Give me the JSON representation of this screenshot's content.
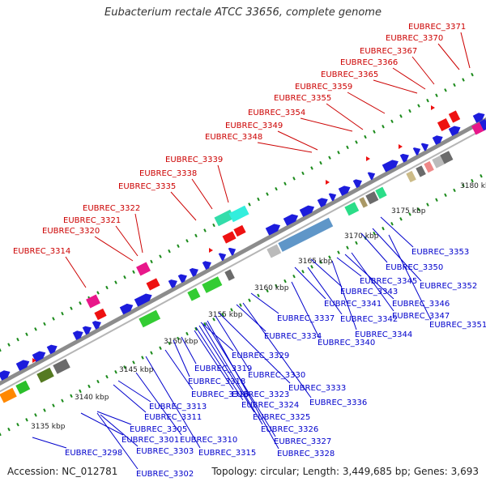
{
  "title": "Eubacterium rectale ATCC 33656, complete genome",
  "footer": {
    "accession": "Accession: NC_012781",
    "topology": "Topology: circular; Length: 3,449,685 bp; Genes: 3,693"
  },
  "colors": {
    "backbone": "#8c8c8c",
    "top_labels": "#cc0000",
    "bottom_labels": "#0000cc",
    "tick_dots": "#1a8a1a"
  },
  "kbp_labels": [
    "3135 kbp",
    "3140 kbp",
    "3145 kbp",
    "3150 kbp",
    "3155 kbp",
    "3160 kbp",
    "3165 kbp",
    "3170 kbp",
    "3175 kbp",
    "3180 kbp"
  ],
  "top_labels": [
    "EUBREC_3314",
    "EUBREC_3320",
    "EUBREC_3321",
    "EUBREC_3322",
    "EUBREC_3335",
    "EUBREC_3338",
    "EUBREC_3339",
    "EUBREC_3348",
    "EUBREC_3349",
    "EUBREC_3354",
    "EUBREC_3355",
    "EUBREC_3359",
    "EUBREC_3365",
    "EUBREC_3366",
    "EUBREC_3367",
    "EUBREC_3370",
    "EUBREC_3371"
  ],
  "bottom_labels": [
    "EUBREC_3298",
    "EUBREC_3301",
    "EUBREC_3302",
    "EUBREC_3303",
    "EUBREC_3305",
    "EUBREC_3310",
    "EUBREC_3311",
    "EUBREC_3313",
    "EUBREC_3315",
    "EUBREC_3316",
    "EUBREC_3318",
    "EUBREC_3319",
    "EUBREC_3323",
    "EUBREC_3324",
    "EUBREC_3325",
    "EUBREC_3326",
    "EUBREC_3327",
    "EUBREC_3328",
    "EUBREC_3329",
    "EUBREC_3330",
    "EUBREC_3333",
    "EUBREC_3334",
    "EUBREC_3336",
    "EUBREC_3337",
    "EUBREC_3340",
    "EUBREC_3341",
    "EUBREC_3342",
    "EUBREC_3343",
    "EUBREC_3344",
    "EUBREC_3345",
    "EUBREC_3346",
    "EUBREC_3347",
    "EUBREC_3350",
    "EUBREC_3351",
    "EUBREC_3352",
    "EUBREC_3353"
  ]
}
